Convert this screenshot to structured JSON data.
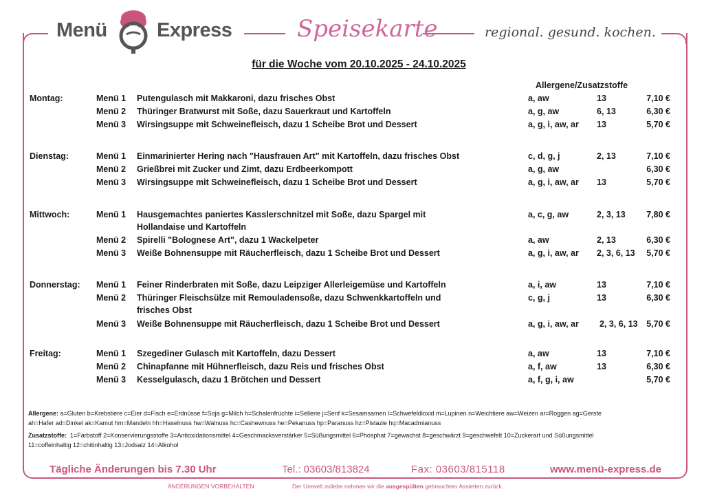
{
  "header": {
    "brand_left": "Menü",
    "brand_right": "Express",
    "title_script": "Speisekarte",
    "tagline": "regional. gesund. kochen.",
    "week": "für die Woche  vom 20.10.2025 - 24.10.2025",
    "allergen_header": "Allergene/Zusatzstoffe"
  },
  "colors": {
    "accent": "#c9557f"
  },
  "days": [
    {
      "day": "Montag:",
      "menus": [
        {
          "label": "Menü 1",
          "dish": [
            "Putengulasch mit Makkaroni, dazu frisches Obst"
          ],
          "allergens": "a, aw",
          "additives": "13",
          "price": "7,10 €"
        },
        {
          "label": "Menü 2",
          "dish": [
            "Thüringer Bratwurst mit Soße, dazu Sauerkraut und Kartoffeln"
          ],
          "allergens": "a, g, aw",
          "additives": "6, 13",
          "price": "6,30 €"
        },
        {
          "label": "Menü 3",
          "dish": [
            "Wirsingsuppe mit Schweinefleisch, dazu 1 Scheibe Brot und Dessert"
          ],
          "allergens": "a, g, i, aw, ar",
          "additives": "13",
          "price": "5,70 €"
        }
      ]
    },
    {
      "day": "Dienstag:",
      "menus": [
        {
          "label": "Menü 1",
          "dish": [
            "Einmarinierter Hering nach \"Hausfrauen Art\" mit Kartoffeln, dazu frisches Obst"
          ],
          "allergens": "c, d, g, j",
          "additives": "2, 13",
          "price": "7,10 €"
        },
        {
          "label": "Menü 2",
          "dish": [
            "Grießbrei mit Zucker und Zimt, dazu Erdbeerkompott"
          ],
          "allergens": "a, g, aw",
          "additives": "",
          "price": "6,30 €"
        },
        {
          "label": "Menü 3",
          "dish": [
            "Wirsingsuppe mit Schweinefleisch, dazu 1 Scheibe Brot und Dessert"
          ],
          "allergens": "a, g, i, aw, ar",
          "additives": "13",
          "price": "5,70 €"
        }
      ]
    },
    {
      "day": "Mittwoch:",
      "menus": [
        {
          "label": "Menü 1",
          "dish": [
            "Hausgemachtes paniertes Kasslerschnitzel mit Soße, dazu Spargel mit",
            "Hollandaise und Kartoffeln"
          ],
          "allergens": "a, c, g, aw",
          "additives": "2, 3, 13",
          "price": "7,80 €"
        },
        {
          "label": "Menü 2",
          "dish": [
            "Spirelli \"Bolognese Art\", dazu 1 Wackelpeter"
          ],
          "allergens": "a, aw",
          "additives": "2, 13",
          "price": "6,30 €"
        },
        {
          "label": "Menü 3",
          "dish": [
            "Weiße Bohnensuppe mit Räucherfleisch, dazu 1 Scheibe Brot und Dessert"
          ],
          "allergens": "a, g, i, aw, ar",
          "additives": "2, 3, 6, 13",
          "price": "5,70 €"
        }
      ]
    },
    {
      "day": "Donnerstag:",
      "menus": [
        {
          "label": "Menü 1",
          "dish": [
            "Feiner Rinderbraten mit Soße, dazu Leipziger Allerleigemüse und Kartoffeln"
          ],
          "allergens": "a, i, aw",
          "additives": "13",
          "price": "7,10 €"
        },
        {
          "label": "Menü 2",
          "dish": [
            "Thüringer Fleischsülze mit Remouladensoße, dazu Schwenkkartoffeln und",
            "frisches Obst"
          ],
          "allergens": "c, g, j",
          "additives": "13",
          "price": "6,30 €"
        },
        {
          "label": "Menü 3",
          "dish": [
            "Weiße Bohnensuppe mit Räucherfleisch, dazu 1 Scheibe Brot und Dessert"
          ],
          "allergens": "a, g, i, aw, ar",
          "additives": "2, 3, 6, 13",
          "price": "5,70 €"
        }
      ]
    },
    {
      "day": "Freitag:",
      "menus": [
        {
          "label": "Menü 1",
          "dish": [
            "Szegediner Gulasch mit Kartoffeln, dazu Dessert"
          ],
          "allergens": "a, aw",
          "additives": "13",
          "price": "7,10 €"
        },
        {
          "label": "Menü 2",
          "dish": [
            "Chinapfanne mit Hühnerfleisch, dazu Reis und frisches Obst"
          ],
          "allergens": "a, f, aw",
          "additives": "13",
          "price": "6,30 €"
        },
        {
          "label": "Menü 3",
          "dish": [
            "Kesselgulasch, dazu 1 Brötchen und Dessert"
          ],
          "allergens": "a, f, g, i, aw",
          "additives": "",
          "price": "5,70 €"
        }
      ]
    }
  ],
  "legend": {
    "allergens_label": "Allergene:",
    "allergens_line1": "a=Gluten b=Krebstiere c=Eier d=Fisch e=Erdnüsse f=Soja g=Milch h=Schalenfrüchte i=Sellerie j=Senf k=Sesamsamen l=Schwefeldioxid m=Lupinen n=Weichtiere aw=Weizen ar=Roggen ag=Gerste",
    "allergens_line2": "ah=Hafer ad=Dinkel ak=Kamut hm=Mandeln hh=Haselnuss hw=Walnuss hc=Cashewnuss he=Pekanuss hp=Paranuss hz=Pistazie hq=Macadmianuss",
    "additives_label": "Zusatzstoffe:",
    "additives_line1": "1=Farbstoff 2=Konservierungsstoffe 3=Antioxidationsmittel 4=Geschmacksverstärker 5=Süßungsmittel 6=Phosphat 7=gewachst 8=geschwärzt 9=geschwefelt 10=Zuckerart und Süßungsmittel",
    "additives_line2": "11=coffeinhaltig 12=chitinhaltig 13=Jodsalz 14=Alkohol"
  },
  "footer": {
    "changes": "Tägliche Änderungen bis 7.30 Uhr",
    "tel": "Tel.: 03603/813824",
    "fax": "Fax: 03603/815118",
    "web": "www.menü-express.de",
    "reserved": "ÄNDERUNGEN VORBEHALTEN",
    "env_pre": "Der Umwelt zuliebe nehmen wir die ",
    "env_bold": "ausgespülten",
    "env_post": " gebrauchten Assietten zurück."
  }
}
